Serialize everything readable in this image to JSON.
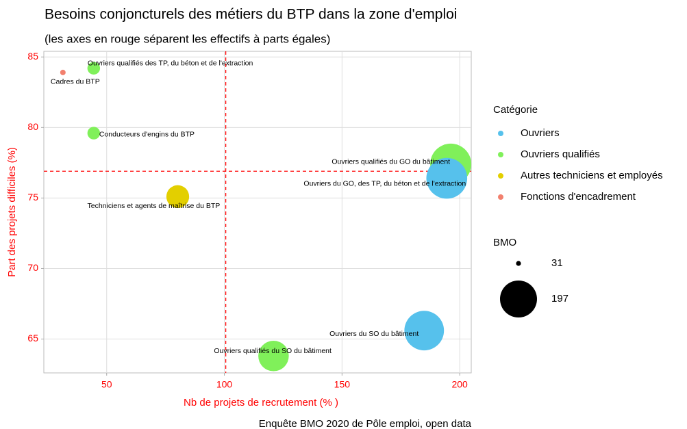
{
  "chart_data": {
    "type": "scatter",
    "title": "Besoins conjoncturels des métiers du BTP dans la zone d'emploi",
    "subtitle": "(les axes en rouge séparent les effectifs à parts égales)",
    "x_label": "Nb de projets de recrutement (% )",
    "y_label": "Part des projets difficiles (%)",
    "caption": "Enquête BMO 2020 de Pôle emploi, open data",
    "xlim": [
      23.3,
      204.9
    ],
    "ylim": [
      62.6,
      85.4
    ],
    "xticks": [
      50,
      100,
      150,
      200
    ],
    "yticks": [
      65,
      70,
      75,
      80,
      85
    ],
    "grid": true,
    "vline": 100.6,
    "hline": 76.9,
    "legend_title": "Catégorie",
    "size_legend": {
      "title": "BMO",
      "values": [
        31,
        197
      ]
    },
    "series": [
      {
        "name": "Ouvriers",
        "color": "#56c1ec",
        "x": [
          194.5,
          184.9
        ],
        "values": [
          76.4,
          65.6
        ],
        "sizes": [
          195,
          185
        ],
        "labels": [
          "Ouvriers du GO, des TP, du béton et de l'extraction",
          "Ouvriers du SO du bâtiment"
        ]
      },
      {
        "name": "Ouvriers qualifiés",
        "color": "#80f05a",
        "x": [
          44.5,
          44.5,
          196.2,
          120.9
        ],
        "values": [
          84.2,
          79.6,
          77.4,
          63.8
        ],
        "sizes": [
          44,
          44,
          197,
          121
        ],
        "labels": [
          "Ouvriers qualifiés des TP, du béton et de l'extraction",
          "Conducteurs d'engins du BTP",
          "Ouvriers qualifiés du GO du bâtiment",
          "Ouvriers qualifiés du SO du bâtiment"
        ]
      },
      {
        "name": "Autres techniciens et employés",
        "color": "#e3cf00",
        "x": [
          80.2
        ],
        "values": [
          75.1
        ],
        "sizes": [
          80
        ],
        "labels": [
          "Techniciens et agents de maîtrise du BTP"
        ]
      },
      {
        "name": "Fonctions d'encadrement",
        "color": "#f2806e",
        "x": [
          31.4
        ],
        "values": [
          83.9
        ],
        "sizes": [
          31
        ],
        "labels": [
          "Cadres du BTP"
        ]
      }
    ]
  }
}
